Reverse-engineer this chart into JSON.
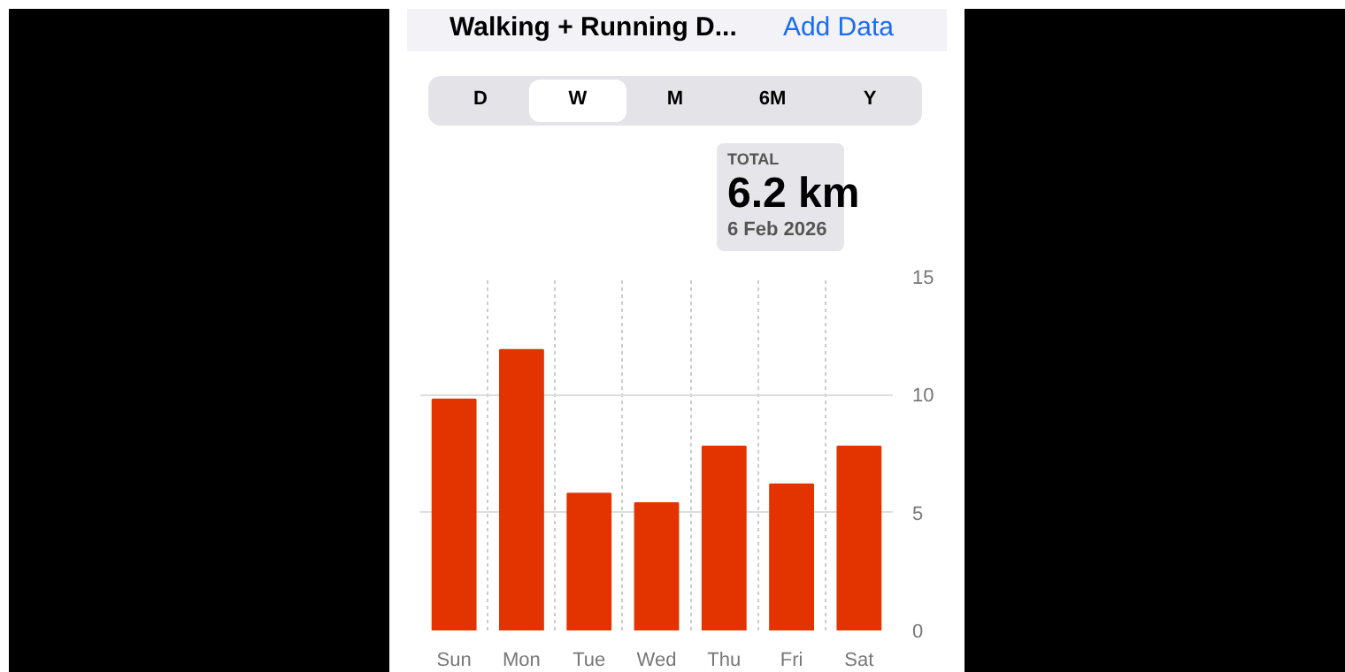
{
  "chart_data": {
    "type": "bar",
    "title": "Walking + Running D...",
    "categories": [
      "Sun",
      "Mon",
      "Tue",
      "Wed",
      "Thu",
      "Fri",
      "Sat"
    ],
    "values": [
      9.8,
      11.9,
      5.8,
      5.4,
      7.8,
      6.2,
      7.8
    ],
    "color": "#e33400",
    "ylim": [
      0,
      15
    ],
    "yticks": [
      0,
      5,
      10,
      15
    ],
    "grid": true,
    "annotations": [
      "Add Data",
      "D",
      "W",
      "M",
      "6M",
      "Y",
      "TOTAL",
      "6.2 km",
      "6 Feb 2026"
    ]
  }
}
